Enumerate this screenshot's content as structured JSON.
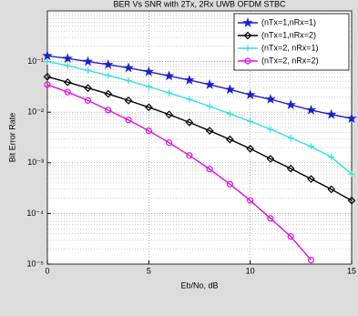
{
  "chart_data": {
    "type": "line",
    "title": "BER Vs SNR with 2Tx, 2Rx UWB OFDM STBC",
    "x_label": "Eb/No, dB",
    "y_label": "Bit Error Rate",
    "x": [
      0,
      1,
      2,
      3,
      4,
      5,
      6,
      7,
      8,
      9,
      10,
      11,
      12,
      13,
      14,
      15
    ],
    "xlim": [
      0,
      15
    ],
    "xticks": [
      0,
      5,
      10,
      15
    ],
    "ylim": [
      1e-05,
      1
    ],
    "log_y": true,
    "yticks": [
      {
        "value": 1e-05,
        "label": "10⁻⁵"
      },
      {
        "value": 0.0001,
        "label": "10⁻⁴"
      },
      {
        "value": 0.001,
        "label": "10⁻³"
      },
      {
        "value": 0.01,
        "label": "10⁻²"
      },
      {
        "value": 0.1,
        "label": "10⁻¹"
      }
    ],
    "grid": true,
    "legend": "upper right",
    "series": [
      {
        "name": "(nTx=1,nRx=1)",
        "color": "#1f1fcc",
        "marker": "star",
        "values": [
          0.13,
          0.115,
          0.1,
          0.087,
          0.075,
          0.063,
          0.052,
          0.043,
          0.035,
          0.028,
          0.022,
          0.018,
          0.014,
          0.011,
          0.009,
          0.0075
        ]
      },
      {
        "name": "(nTx=1,nRx=2)",
        "color": "#000000",
        "marker": "diamond",
        "values": [
          0.05,
          0.039,
          0.03,
          0.023,
          0.017,
          0.0125,
          0.009,
          0.0063,
          0.0043,
          0.0029,
          0.0019,
          0.0012,
          0.00077,
          0.00048,
          0.0003,
          0.00018
        ]
      },
      {
        "name": "(nTx=2, nRx=1)",
        "color": "#33e0e0",
        "marker": "plus",
        "values": [
          0.1,
          0.083,
          0.067,
          0.053,
          0.042,
          0.032,
          0.024,
          0.018,
          0.013,
          0.0093,
          0.0066,
          0.0046,
          0.0031,
          0.0021,
          0.0013,
          0.0006
        ]
      },
      {
        "name": "(nTx=2, nRx=2)",
        "color": "#e010e0",
        "marker": "circle",
        "values": [
          0.035,
          0.025,
          0.017,
          0.011,
          0.007,
          0.0043,
          0.0025,
          0.0014,
          0.00075,
          0.00038,
          0.00018,
          8e-05,
          3.5e-05,
          1.2e-05,
          null,
          null
        ]
      }
    ]
  }
}
